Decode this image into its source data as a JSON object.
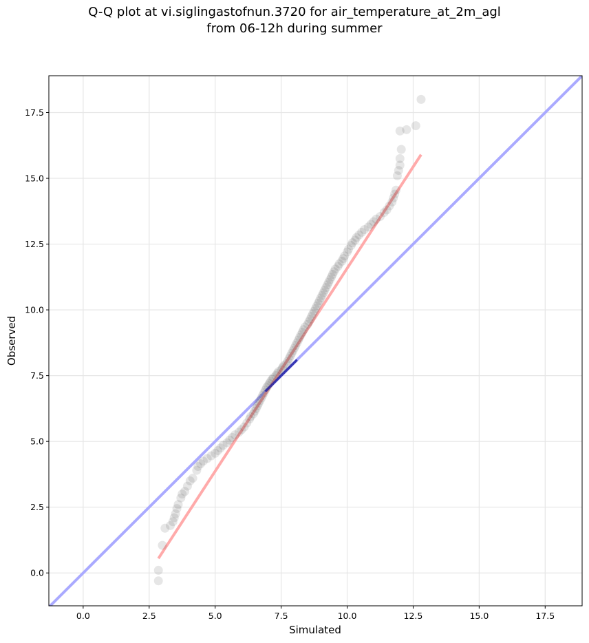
{
  "chart_data": {
    "type": "scatter",
    "title": "Q-Q plot at vi.siglingastofnun.3720 for air_temperature_at_2m_agl",
    "subtitle": "from 06-12h during summer",
    "xlabel": "Simulated",
    "ylabel": "Observed",
    "xlim": [
      -1.3,
      18.9
    ],
    "ylim": [
      -1.25,
      18.9
    ],
    "xticks": [
      "0.0",
      "2.5",
      "5.0",
      "7.5",
      "10.0",
      "12.5",
      "15.0",
      "17.5"
    ],
    "yticks": [
      "0.0",
      "2.5",
      "5.0",
      "7.5",
      "10.0",
      "12.5",
      "15.0",
      "17.5"
    ],
    "grid": true,
    "reference_line": {
      "name": "1:1 line",
      "color": "#aaaaff",
      "points": [
        [
          -1.3,
          -1.3
        ],
        [
          18.9,
          18.9
        ]
      ]
    },
    "fit_line": {
      "name": "fit",
      "color": "#ffaaaa",
      "points": [
        [
          2.85,
          0.55
        ],
        [
          12.8,
          15.9
        ]
      ]
    },
    "central_line": {
      "color": "#1a1aa0",
      "points": [
        [
          6.9,
          6.9
        ],
        [
          8.1,
          8.1
        ]
      ]
    },
    "point_color": "#333333",
    "points": [
      [
        2.85,
        -0.3
      ],
      [
        2.85,
        0.1
      ],
      [
        3.0,
        1.05
      ],
      [
        3.1,
        1.7
      ],
      [
        3.3,
        1.8
      ],
      [
        3.4,
        1.95
      ],
      [
        3.45,
        2.1
      ],
      [
        3.5,
        2.25
      ],
      [
        3.55,
        2.45
      ],
      [
        3.6,
        2.6
      ],
      [
        3.7,
        2.85
      ],
      [
        3.75,
        3.0
      ],
      [
        3.85,
        3.1
      ],
      [
        3.95,
        3.3
      ],
      [
        4.05,
        3.5
      ],
      [
        4.15,
        3.6
      ],
      [
        4.3,
        3.9
      ],
      [
        4.35,
        4.05
      ],
      [
        4.45,
        4.15
      ],
      [
        4.55,
        4.25
      ],
      [
        4.7,
        4.35
      ],
      [
        4.85,
        4.45
      ],
      [
        5.0,
        4.55
      ],
      [
        5.1,
        4.65
      ],
      [
        5.2,
        4.75
      ],
      [
        5.3,
        4.85
      ],
      [
        5.45,
        4.95
      ],
      [
        5.55,
        5.05
      ],
      [
        5.65,
        5.15
      ],
      [
        5.75,
        5.25
      ],
      [
        5.9,
        5.35
      ],
      [
        6.0,
        5.45
      ],
      [
        6.1,
        5.55
      ],
      [
        6.2,
        5.7
      ],
      [
        6.3,
        5.85
      ],
      [
        6.35,
        5.95
      ],
      [
        6.45,
        6.05
      ],
      [
        6.5,
        6.15
      ],
      [
        6.55,
        6.25
      ],
      [
        6.6,
        6.35
      ],
      [
        6.65,
        6.45
      ],
      [
        6.7,
        6.55
      ],
      [
        6.75,
        6.65
      ],
      [
        6.8,
        6.75
      ],
      [
        6.85,
        6.85
      ],
      [
        6.9,
        6.95
      ],
      [
        6.95,
        7.05
      ],
      [
        7.0,
        7.12
      ],
      [
        7.05,
        7.2
      ],
      [
        7.1,
        7.28
      ],
      [
        7.15,
        7.35
      ],
      [
        7.2,
        7.42
      ],
      [
        7.3,
        7.5
      ],
      [
        7.35,
        7.58
      ],
      [
        7.4,
        7.65
      ],
      [
        7.5,
        7.72
      ],
      [
        7.55,
        7.8
      ],
      [
        7.6,
        7.88
      ],
      [
        7.7,
        7.95
      ],
      [
        7.75,
        8.05
      ],
      [
        7.8,
        8.15
      ],
      [
        7.85,
        8.25
      ],
      [
        7.9,
        8.35
      ],
      [
        7.95,
        8.45
      ],
      [
        8.0,
        8.55
      ],
      [
        8.05,
        8.65
      ],
      [
        8.1,
        8.75
      ],
      [
        8.15,
        8.85
      ],
      [
        8.2,
        8.95
      ],
      [
        8.25,
        9.05
      ],
      [
        8.3,
        9.15
      ],
      [
        8.35,
        9.25
      ],
      [
        8.4,
        9.35
      ],
      [
        8.5,
        9.45
      ],
      [
        8.55,
        9.55
      ],
      [
        8.6,
        9.65
      ],
      [
        8.65,
        9.75
      ],
      [
        8.7,
        9.85
      ],
      [
        8.75,
        9.95
      ],
      [
        8.8,
        10.05
      ],
      [
        8.85,
        10.15
      ],
      [
        8.9,
        10.25
      ],
      [
        8.95,
        10.35
      ],
      [
        9.0,
        10.45
      ],
      [
        9.05,
        10.55
      ],
      [
        9.1,
        10.65
      ],
      [
        9.15,
        10.75
      ],
      [
        9.2,
        10.85
      ],
      [
        9.25,
        10.95
      ],
      [
        9.3,
        11.05
      ],
      [
        9.35,
        11.15
      ],
      [
        9.4,
        11.25
      ],
      [
        9.45,
        11.35
      ],
      [
        9.5,
        11.45
      ],
      [
        9.55,
        11.55
      ],
      [
        9.65,
        11.65
      ],
      [
        9.7,
        11.75
      ],
      [
        9.8,
        11.85
      ],
      [
        9.85,
        11.95
      ],
      [
        9.9,
        12.05
      ],
      [
        10.0,
        12.2
      ],
      [
        10.05,
        12.3
      ],
      [
        10.15,
        12.45
      ],
      [
        10.2,
        12.55
      ],
      [
        10.3,
        12.65
      ],
      [
        10.35,
        12.75
      ],
      [
        10.45,
        12.85
      ],
      [
        10.55,
        12.95
      ],
      [
        10.65,
        13.05
      ],
      [
        10.8,
        13.15
      ],
      [
        10.9,
        13.25
      ],
      [
        11.0,
        13.35
      ],
      [
        11.1,
        13.45
      ],
      [
        11.25,
        13.55
      ],
      [
        11.4,
        13.7
      ],
      [
        11.5,
        13.8
      ],
      [
        11.6,
        13.95
      ],
      [
        11.7,
        14.1
      ],
      [
        11.75,
        14.25
      ],
      [
        11.8,
        14.4
      ],
      [
        11.85,
        14.55
      ],
      [
        11.9,
        15.1
      ],
      [
        11.95,
        15.3
      ],
      [
        12.0,
        15.5
      ],
      [
        12.0,
        15.75
      ],
      [
        12.05,
        16.1
      ],
      [
        12.0,
        16.8
      ],
      [
        12.25,
        16.85
      ],
      [
        12.6,
        17.0
      ],
      [
        12.8,
        18.0
      ]
    ]
  }
}
